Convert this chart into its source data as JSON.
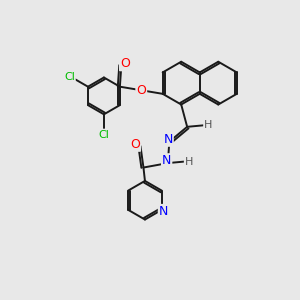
{
  "background_color": "#e8e8e8",
  "bond_color": "#1a1a1a",
  "bond_width": 1.4,
  "dbo": 0.065,
  "atom_colors": {
    "O": "#ff0000",
    "N": "#0000ff",
    "Cl": "#00bb00",
    "H": "#555555",
    "C": "#1a1a1a"
  },
  "figsize": [
    3.0,
    3.0
  ],
  "dpi": 100,
  "xlim": [
    0,
    10
  ],
  "ylim": [
    0,
    10
  ]
}
